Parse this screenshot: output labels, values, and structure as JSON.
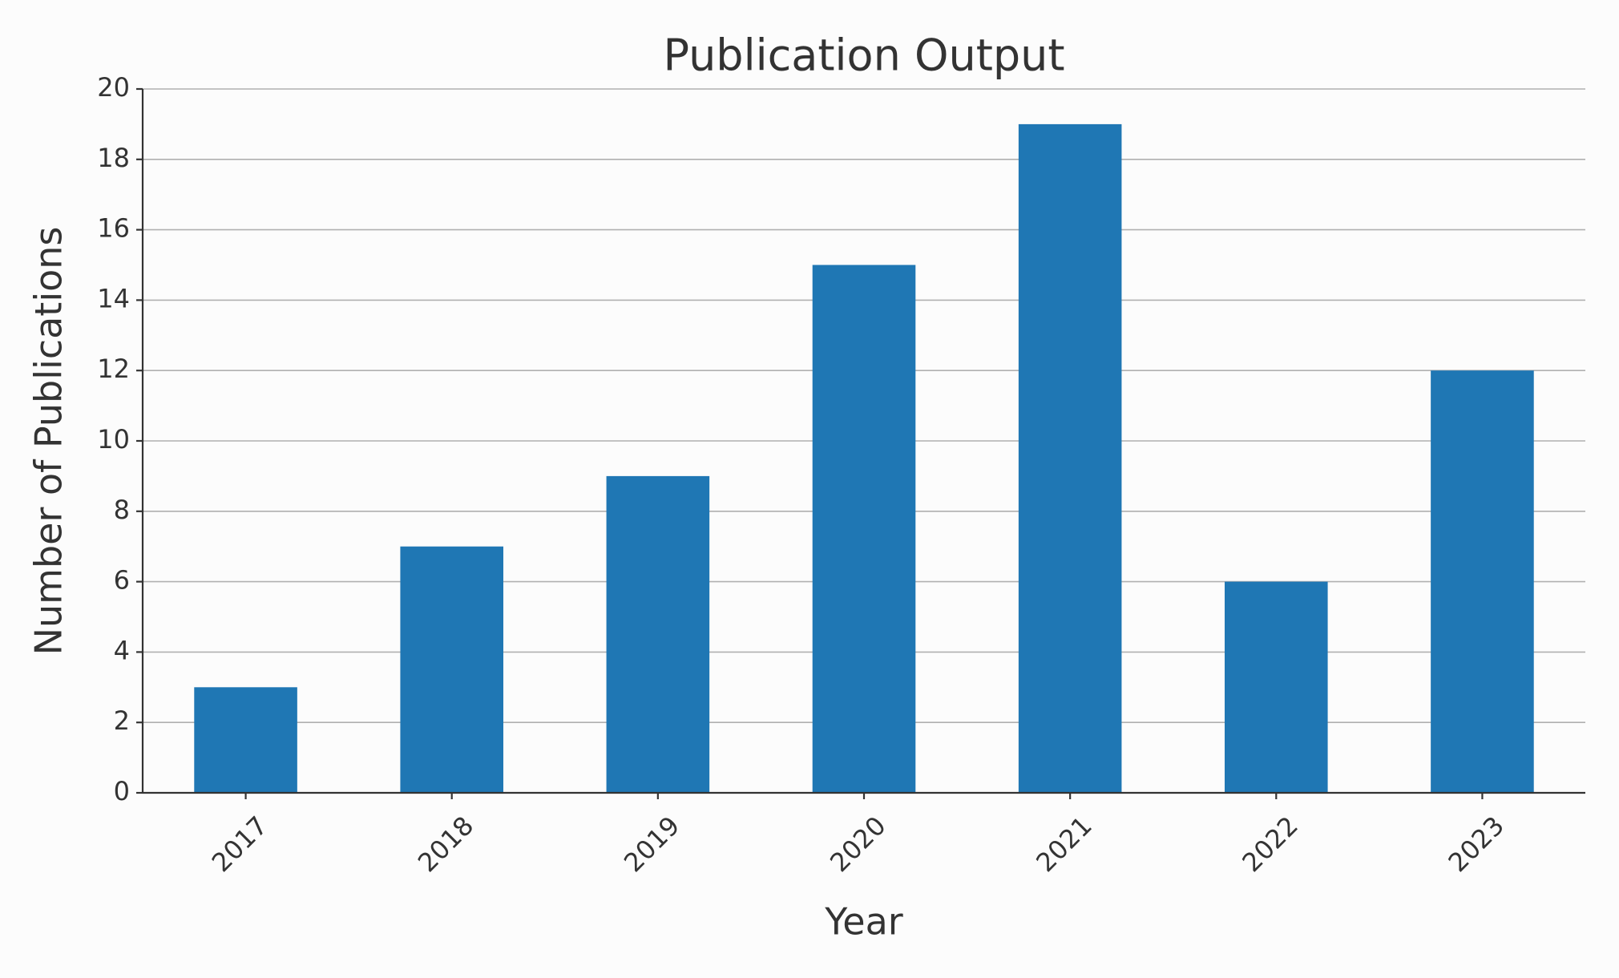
{
  "chart_data": {
    "type": "bar",
    "title": "Publication Output",
    "x_label": "Year",
    "y_label": "Number of Publications",
    "categories": [
      "2017",
      "2018",
      "2019",
      "2020",
      "2021",
      "2022",
      "2023"
    ],
    "values": [
      3,
      7,
      9,
      15,
      19,
      6,
      12
    ],
    "color": "#1f77b4",
    "ylim": [
      0,
      20
    ],
    "yticks": [
      0,
      2,
      4,
      6,
      8,
      10,
      12,
      14,
      16,
      18,
      20
    ],
    "grid": true
  }
}
